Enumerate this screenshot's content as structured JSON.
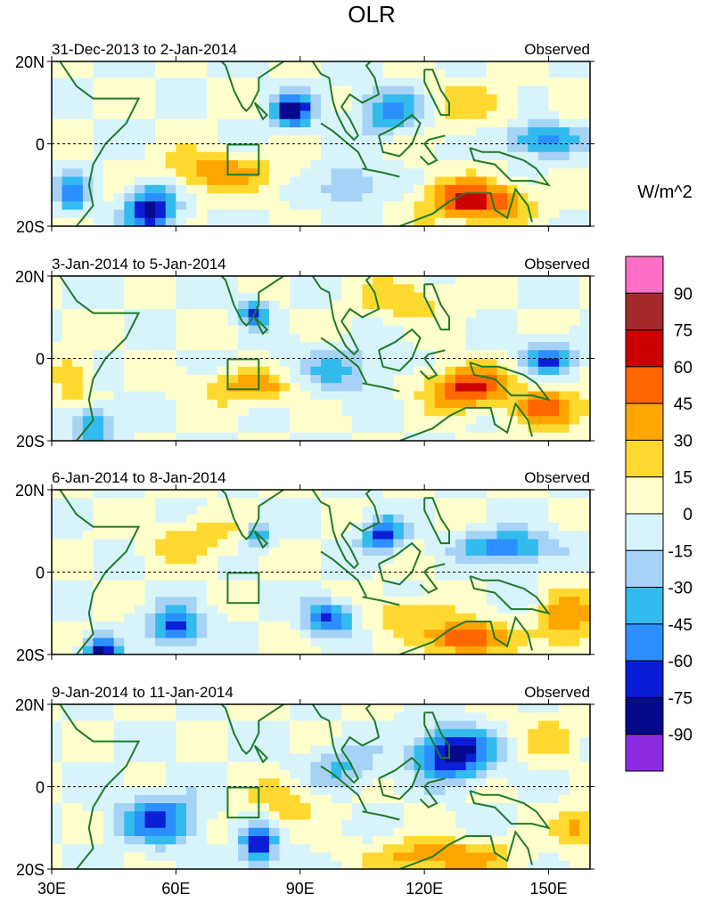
{
  "chart_data": {
    "type": "heatmap",
    "title": "OLR",
    "colorbar": {
      "unit_label": "W/m^2",
      "levels": [
        90,
        75,
        60,
        45,
        30,
        15,
        0,
        -15,
        -30,
        -45,
        -60,
        -75,
        -90
      ],
      "colors": [
        "#ff6ec7",
        "#a52a2a",
        "#cc0000",
        "#ff6600",
        "#ffa500",
        "#ffd92f",
        "#ffffcc",
        "#d8f4fb",
        "#a6d3f5",
        "#33bbee",
        "#2b8fff",
        "#0a1ed6",
        "#050a8c",
        "#8a2be2"
      ]
    },
    "x_ticks": [
      {
        "value": 30,
        "label": "30E"
      },
      {
        "value": 60,
        "label": "60E"
      },
      {
        "value": 90,
        "label": "90E"
      },
      {
        "value": 120,
        "label": "120E"
      },
      {
        "value": 150,
        "label": "150E"
      }
    ],
    "y_ticks": [
      {
        "value": 20,
        "label": "20N"
      },
      {
        "value": 0,
        "label": "0"
      },
      {
        "value": -20,
        "label": "20S"
      }
    ],
    "xlim": [
      30,
      160
    ],
    "ylim": [
      -20,
      20
    ],
    "panels": [
      {
        "left_label": "31-Dec-2013 to 2-Jan-2014",
        "right_label": "Observed",
        "anomalies": [
          {
            "lon": 88,
            "lat": 8,
            "value": -85,
            "rlon": 5,
            "rlat": 4
          },
          {
            "lon": 70,
            "lat": -7,
            "value": 40,
            "rlon": 14,
            "rlat": 5
          },
          {
            "lon": 54,
            "lat": -16,
            "value": -80,
            "rlon": 6,
            "rlat": 6
          },
          {
            "lon": 132,
            "lat": -14,
            "value": 70,
            "rlon": 12,
            "rlat": 5
          },
          {
            "lon": 112,
            "lat": 8,
            "value": -55,
            "rlon": 8,
            "rlat": 5
          },
          {
            "lon": 148,
            "lat": 1,
            "value": -55,
            "rlon": 9,
            "rlat": 4
          },
          {
            "lon": 102,
            "lat": -10,
            "value": -35,
            "rlon": 7,
            "rlat": 5
          },
          {
            "lon": 130,
            "lat": 9,
            "value": 20,
            "rlon": 14,
            "rlat": 6
          },
          {
            "lon": 35,
            "lat": -12,
            "value": -50,
            "rlon": 4,
            "rlat": 5
          }
        ]
      },
      {
        "left_label": "3-Jan-2014 to 5-Jan-2014",
        "right_label": "Observed",
        "anomalies": [
          {
            "lon": 79,
            "lat": 11,
            "value": -70,
            "rlon": 3,
            "rlat": 3
          },
          {
            "lon": 78,
            "lat": -7,
            "value": 40,
            "rlon": 11,
            "rlat": 4
          },
          {
            "lon": 130,
            "lat": -7,
            "value": 65,
            "rlon": 10,
            "rlat": 5
          },
          {
            "lon": 150,
            "lat": 0,
            "value": -60,
            "rlon": 6,
            "rlat": 4
          },
          {
            "lon": 100,
            "lat": -3,
            "value": -30,
            "rlon": 12,
            "rlat": 6
          },
          {
            "lon": 40,
            "lat": -16,
            "value": -55,
            "rlon": 5,
            "rlat": 4
          },
          {
            "lon": 115,
            "lat": 14,
            "value": 25,
            "rlon": 12,
            "rlat": 5
          },
          {
            "lon": 35,
            "lat": -5,
            "value": 30,
            "rlon": 4,
            "rlat": 6
          },
          {
            "lon": 150,
            "lat": -12,
            "value": 45,
            "rlon": 10,
            "rlat": 5
          }
        ]
      },
      {
        "left_label": "6-Jan-2014 to 8-Jan-2014",
        "right_label": "Observed",
        "anomalies": [
          {
            "lon": 130,
            "lat": -16,
            "value": 70,
            "rlon": 9,
            "rlat": 4
          },
          {
            "lon": 110,
            "lat": 9,
            "value": -70,
            "rlon": 5,
            "rlat": 4
          },
          {
            "lon": 140,
            "lat": 6,
            "value": -60,
            "rlon": 10,
            "rlat": 4
          },
          {
            "lon": 60,
            "lat": -13,
            "value": -70,
            "rlon": 6,
            "rlat": 5
          },
          {
            "lon": 97,
            "lat": -11,
            "value": -65,
            "rlon": 6,
            "rlat": 4
          },
          {
            "lon": 42,
            "lat": -19,
            "value": -80,
            "rlon": 4,
            "rlat": 3
          },
          {
            "lon": 80,
            "lat": 9,
            "value": -45,
            "rlon": 3,
            "rlat": 3
          },
          {
            "lon": 65,
            "lat": 8,
            "value": 25,
            "rlon": 12,
            "rlat": 5
          },
          {
            "lon": 155,
            "lat": -12,
            "value": 45,
            "rlon": 7,
            "rlat": 7
          },
          {
            "lon": 115,
            "lat": -10,
            "value": 25,
            "rlon": 10,
            "rlat": 4
          }
        ]
      },
      {
        "left_label": "9-Jan-2014 to 11-Jan-2014",
        "right_label": "Observed",
        "anomalies": [
          {
            "lon": 127,
            "lat": 8,
            "value": -90,
            "rlon": 9,
            "rlat": 6
          },
          {
            "lon": 80,
            "lat": -14,
            "value": -75,
            "rlon": 4,
            "rlat": 5
          },
          {
            "lon": 56,
            "lat": -8,
            "value": -65,
            "rlon": 9,
            "rlat": 6
          },
          {
            "lon": 124,
            "lat": -17,
            "value": 45,
            "rlon": 16,
            "rlat": 4
          },
          {
            "lon": 100,
            "lat": 5,
            "value": -35,
            "rlon": 8,
            "rlat": 5
          },
          {
            "lon": 86,
            "lat": -4,
            "value": 25,
            "rlon": 9,
            "rlat": 5
          },
          {
            "lon": 150,
            "lat": 12,
            "value": 20,
            "rlon": 8,
            "rlat": 6
          },
          {
            "lon": 157,
            "lat": -10,
            "value": 35,
            "rlon": 5,
            "rlat": 5
          }
        ]
      }
    ]
  }
}
